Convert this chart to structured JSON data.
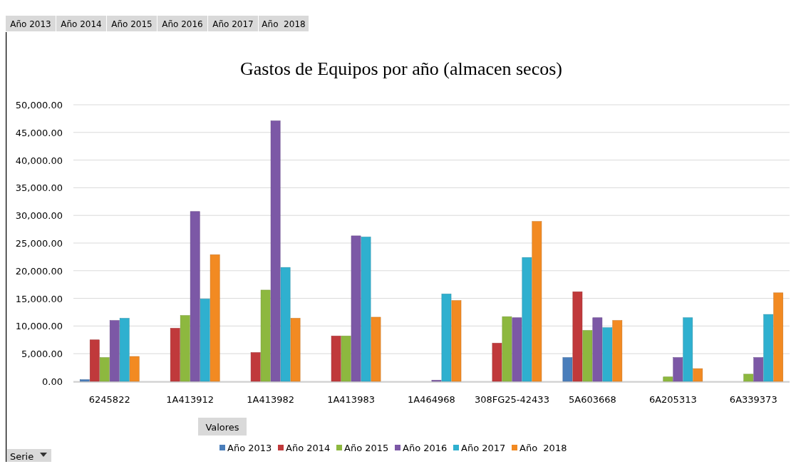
{
  "chart_data": {
    "type": "bar",
    "title": "Gastos de Equipos por año (almacen secos)",
    "categories": [
      "6245822",
      "1A413912",
      "1A413982",
      "1A413983",
      "1A464968",
      "308FG25-42433",
      "5A603668",
      "6A205313",
      "6A339373"
    ],
    "series": [
      {
        "name": "Año 2013",
        "color": "#4a7ebb",
        "values": [
          300,
          null,
          null,
          null,
          null,
          null,
          4300,
          null,
          null
        ]
      },
      {
        "name": "Año 2014",
        "color": "#c0393b",
        "values": [
          7500,
          9600,
          5200,
          8200,
          null,
          6900,
          16200,
          null,
          null
        ]
      },
      {
        "name": "Año 2015",
        "color": "#8db83f",
        "values": [
          4300,
          11900,
          16500,
          8200,
          null,
          11700,
          9200,
          800,
          1300
        ]
      },
      {
        "name": "Año 2016",
        "color": "#7c58a6",
        "values": [
          11000,
          30700,
          47100,
          26300,
          200,
          11500,
          11500,
          4300,
          4300
        ]
      },
      {
        "name": "Año 2017",
        "color": "#2fb0cf",
        "values": [
          11400,
          14900,
          20600,
          26100,
          15800,
          22400,
          9700,
          11500,
          12100
        ]
      },
      {
        "name": "Año  2018",
        "color": "#f28a22",
        "values": [
          4500,
          22900,
          11400,
          11600,
          14600,
          28900,
          11000,
          2300,
          16000
        ]
      }
    ],
    "ylim": [
      0,
      50000
    ],
    "yticks": [
      {
        "value": 0,
        "label": "0.00"
      },
      {
        "value": 5000,
        "label": "5,000.00"
      },
      {
        "value": 10000,
        "label": "10,000.00"
      },
      {
        "value": 15000,
        "label": "15,000.00"
      },
      {
        "value": 20000,
        "label": "20,000.00"
      },
      {
        "value": 25000,
        "label": "25,000.00"
      },
      {
        "value": 30000,
        "label": "30,000.00"
      },
      {
        "value": 35000,
        "label": "35,000.00"
      },
      {
        "value": 40000,
        "label": "40,000.00"
      },
      {
        "value": 45000,
        "label": "45,000.00"
      },
      {
        "value": 50000,
        "label": "50,000.00"
      }
    ],
    "grid": "y",
    "legend": "bottom",
    "annotations": [
      "Año 2013",
      "Año 2014",
      "Año 2015",
      "Año 2016",
      "Año 2017",
      "Año  2018",
      "Valores",
      "Serie"
    ]
  }
}
